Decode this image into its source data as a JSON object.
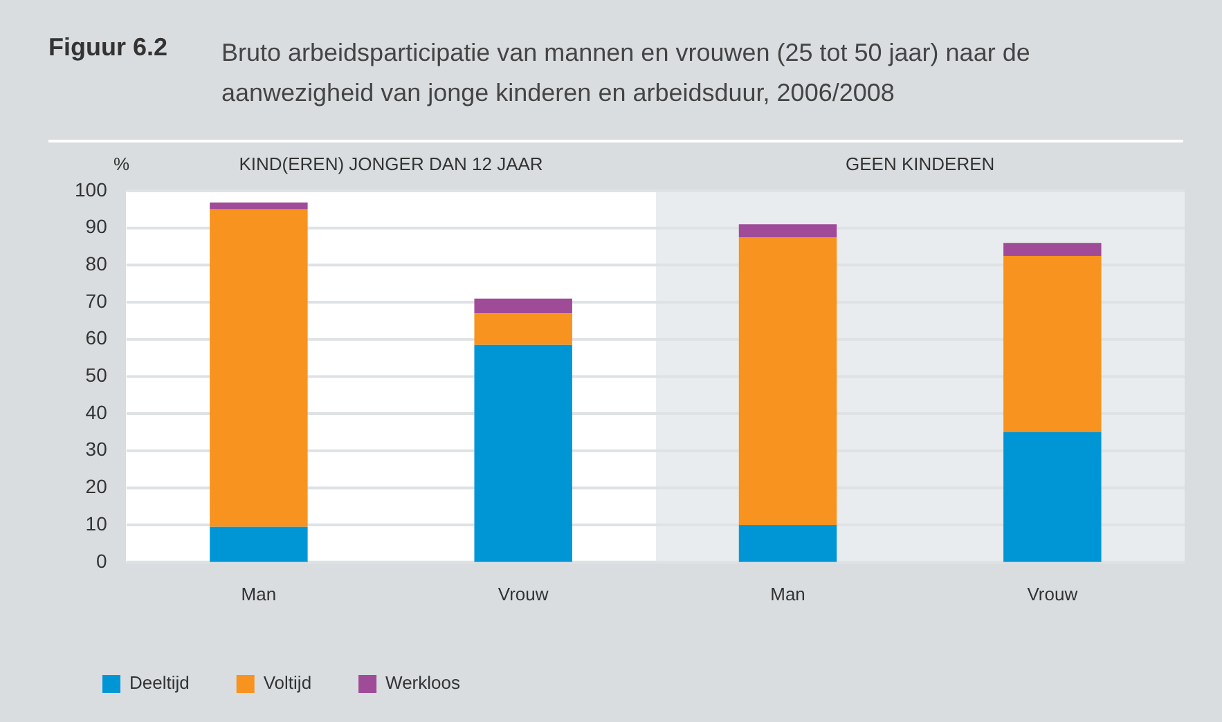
{
  "chart_data": {
    "type": "bar",
    "title": "Figuur 6.2",
    "subtitle": "Bruto arbeidsparticipatie van mannen en vrouwen (25 tot 50 jaar) naar de aanwezigheid van jonge kinderen en arbeidsduur, 2006/2008",
    "ylabel": "%",
    "annotations": [
      "KIND(EREN) JONGER DAN 12 JAAR",
      "GEEN KINDEREN"
    ],
    "categories": [
      "Man",
      "Vrouw",
      "Man",
      "Vrouw"
    ],
    "stacked": true,
    "ylim": [
      0,
      100
    ],
    "yticks": [
      0,
      10,
      20,
      30,
      40,
      50,
      60,
      70,
      80,
      90,
      100
    ],
    "grid": "y",
    "legend": "bottom left",
    "series": [
      {
        "name": "Deeltijd",
        "color": "#0096d6",
        "values": [
          9.5,
          58.5,
          10,
          35
        ]
      },
      {
        "name": "Voltijd",
        "color": "#f7931e",
        "values": [
          85.5,
          8.5,
          77.5,
          47.5
        ]
      },
      {
        "name": "Werkloos",
        "color": "#a04b98",
        "values": [
          1.9,
          4,
          3.5,
          3.5
        ]
      }
    ]
  }
}
